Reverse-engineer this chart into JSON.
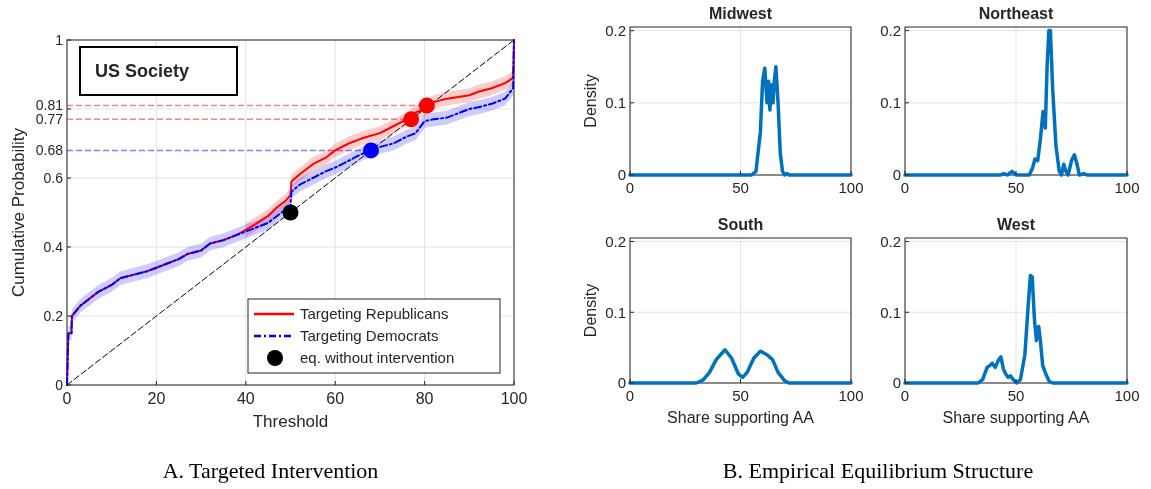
{
  "chart_data": [
    {
      "type": "line",
      "xlabel": "Threshold",
      "ylabel": "Cumulative Probability",
      "xlim": [
        0,
        100
      ],
      "xticks": [
        0,
        20,
        40,
        60,
        80,
        100
      ],
      "ylim": [
        0,
        1
      ],
      "yticks": [
        0,
        0.2,
        0.4,
        0.6,
        {
          "value": 0.8,
          "label": null
        },
        1
      ],
      "grid": true,
      "legend": "bottom right",
      "annotations": [
        "US Society",
        "A. Targeted Intervention"
      ],
      "x": [
        0,
        0.3,
        1,
        1.1,
        3,
        5,
        7,
        10,
        12,
        15,
        18,
        20,
        23,
        25,
        27,
        30,
        32,
        35,
        38,
        40,
        42,
        45,
        47,
        49,
        50,
        50.2,
        52,
        55,
        58,
        60,
        63,
        66,
        70,
        73,
        76,
        78,
        80,
        82,
        85,
        90,
        92,
        95,
        98,
        99.8,
        100
      ],
      "ref_lines": [
        {
          "axis": "y",
          "value": 0.81,
          "label": "0.81",
          "color": "#ff8080",
          "line_style": "dashed"
        },
        {
          "axis": "y",
          "value": 0.77,
          "label": "0.77",
          "color": "#ff8080",
          "line_style": "dashed"
        },
        {
          "axis": "y",
          "value": 0.68,
          "label": "0.68",
          "color": "#8080ff",
          "line_style": "dashed"
        }
      ],
      "series": [
        {
          "name": "Targeting Republicans",
          "color": "#ff0000",
          "line_style": "solid",
          "values": [
            0,
            0.15,
            0.15,
            0.2,
            0.23,
            0.25,
            0.27,
            0.29,
            0.31,
            0.32,
            0.33,
            0.34,
            0.355,
            0.365,
            0.38,
            0.39,
            0.41,
            0.42,
            0.435,
            0.45,
            0.465,
            0.49,
            0.515,
            0.535,
            0.55,
            0.59,
            0.61,
            0.64,
            0.66,
            0.68,
            0.7,
            0.715,
            0.73,
            0.75,
            0.77,
            0.79,
            0.8,
            0.82,
            0.83,
            0.84,
            0.85,
            0.86,
            0.875,
            0.89,
            1
          ],
          "lower": [
            null,
            null,
            null,
            null,
            null,
            null,
            null,
            null,
            null,
            null,
            null,
            null,
            null,
            null,
            null,
            null,
            null,
            null,
            null,
            0.43,
            0.445,
            0.47,
            0.495,
            0.515,
            0.53,
            0.57,
            0.59,
            0.62,
            0.64,
            0.66,
            0.68,
            0.695,
            0.71,
            0.73,
            0.75,
            0.77,
            0.78,
            0.8,
            0.81,
            0.82,
            0.83,
            0.84,
            0.855,
            0.87,
            1
          ],
          "upper": [
            null,
            null,
            null,
            null,
            null,
            null,
            null,
            null,
            null,
            null,
            null,
            null,
            null,
            null,
            null,
            null,
            null,
            null,
            null,
            0.47,
            0.485,
            0.51,
            0.535,
            0.555,
            0.57,
            0.61,
            0.63,
            0.66,
            0.68,
            0.7,
            0.72,
            0.735,
            0.75,
            0.77,
            0.79,
            0.81,
            0.82,
            0.84,
            0.85,
            0.86,
            0.87,
            0.88,
            0.895,
            0.91,
            1
          ]
        },
        {
          "name": "Targeting Democrats",
          "color": "#0000ff",
          "line_style": "dashed",
          "values": [
            0,
            0.15,
            0.15,
            0.2,
            0.23,
            0.25,
            0.27,
            0.29,
            0.31,
            0.32,
            0.33,
            0.34,
            0.355,
            0.365,
            0.38,
            0.39,
            0.41,
            0.42,
            0.435,
            0.445,
            0.455,
            0.47,
            0.49,
            0.51,
            0.52,
            0.56,
            0.58,
            0.6,
            0.62,
            0.63,
            0.65,
            0.67,
            0.69,
            0.7,
            0.72,
            0.73,
            0.765,
            0.77,
            0.775,
            0.8,
            0.805,
            0.815,
            0.83,
            0.86,
            1
          ],
          "lower": [
            0,
            0.13,
            0.13,
            0.18,
            0.21,
            0.23,
            0.25,
            0.27,
            0.29,
            0.3,
            0.31,
            0.32,
            0.335,
            0.345,
            0.36,
            0.37,
            0.39,
            0.4,
            0.415,
            0.425,
            0.435,
            0.45,
            0.47,
            0.49,
            0.5,
            0.54,
            0.56,
            0.58,
            0.6,
            0.61,
            0.63,
            0.65,
            0.67,
            0.68,
            0.7,
            0.71,
            0.745,
            0.75,
            0.755,
            0.78,
            0.785,
            0.795,
            0.81,
            0.84,
            1
          ],
          "upper": [
            0,
            0.17,
            0.17,
            0.22,
            0.25,
            0.27,
            0.29,
            0.31,
            0.33,
            0.34,
            0.35,
            0.36,
            0.375,
            0.385,
            0.4,
            0.41,
            0.43,
            0.44,
            0.455,
            0.465,
            0.475,
            0.49,
            0.51,
            0.53,
            0.54,
            0.58,
            0.6,
            0.62,
            0.64,
            0.65,
            0.67,
            0.69,
            0.71,
            0.72,
            0.74,
            0.75,
            0.785,
            0.79,
            0.795,
            0.82,
            0.825,
            0.835,
            0.85,
            0.88,
            1
          ]
        },
        {
          "type": "line",
          "color": "#000000",
          "line_style": "dashed",
          "x": [
            0,
            100
          ],
          "values": [
            0,
            1
          ]
        },
        {
          "type": "scatter",
          "marker": "circle",
          "x": [
            77,
            80.5,
            68
          ],
          "values": [
            0.77,
            0.81,
            0.68
          ],
          "colors": [
            "#ff0000",
            "#ff0000",
            "#0000ff"
          ]
        },
        {
          "type": "scatter",
          "marker": "circle",
          "name": "eq. without intervention",
          "color": "#000000",
          "x": [
            50
          ],
          "values": [
            0.5
          ]
        }
      ]
    },
    {
      "type": "line",
      "title": "Midwest",
      "ylabel": "Density",
      "xlim": [
        0,
        100
      ],
      "xticks": [
        0,
        50,
        100
      ],
      "ylim": [
        0,
        0.205
      ],
      "yticks": [
        0,
        0.1,
        0.2
      ],
      "grid": true,
      "annotations": [
        "B. Empirical Equilibrium Structure"
      ],
      "series": [
        {
          "color": "#0072bd",
          "x": [
            0,
            55,
            57,
            59,
            60,
            61,
            62,
            62.7,
            63.3,
            64,
            64.7,
            65.3,
            66,
            67,
            68,
            69,
            70,
            71,
            72,
            100
          ],
          "values": [
            0,
            0,
            0.005,
            0.06,
            0.13,
            0.148,
            0.1,
            0.13,
            0.09,
            0.125,
            0.1,
            0.13,
            0.15,
            0.1,
            0.03,
            0.005,
            0,
            0.002,
            0,
            0
          ]
        }
      ]
    },
    {
      "type": "line",
      "title": "Northeast",
      "xlim": [
        0,
        100
      ],
      "xticks": [
        0,
        50,
        100
      ],
      "ylim": [
        0,
        0.205
      ],
      "yticks": [
        0,
        0.1,
        0.2
      ],
      "grid": true,
      "series": [
        {
          "color": "#0072bd",
          "x": [
            0,
            43,
            44.5,
            46,
            48.3,
            50,
            56,
            57.5,
            58.5,
            59.8,
            61,
            62.2,
            63.2,
            64,
            64.8,
            65.5,
            66.5,
            68,
            69.5,
            70.5,
            71.5,
            72.5,
            73.5,
            75,
            76.3,
            77.5,
            78.5,
            80.5,
            82,
            100
          ],
          "values": [
            0,
            0,
            0.002,
            0,
            0.005,
            0,
            0,
            0.01,
            0.022,
            0.02,
            0.05,
            0.088,
            0.065,
            0.15,
            0.2,
            0.2,
            0.12,
            0.04,
            0.005,
            0,
            0.015,
            0.005,
            0,
            0.02,
            0.028,
            0.015,
            0,
            0.002,
            0,
            0
          ]
        }
      ]
    },
    {
      "type": "line",
      "title": "South",
      "xlabel": "Share supporting AA",
      "ylabel": "Density",
      "xlim": [
        0,
        100
      ],
      "xticks": [
        0,
        50,
        100
      ],
      "ylim": [
        0,
        0.205
      ],
      "yticks": [
        0,
        0.1,
        0.2
      ],
      "grid": true,
      "series": [
        {
          "color": "#0072bd",
          "x": [
            0,
            30,
            33,
            36,
            39,
            43,
            46,
            49,
            51,
            53,
            56,
            59,
            62,
            64.5,
            67,
            70,
            72,
            100
          ],
          "values": [
            0,
            0,
            0.004,
            0.015,
            0.033,
            0.047,
            0.035,
            0.013,
            0.008,
            0.015,
            0.035,
            0.045,
            0.04,
            0.033,
            0.015,
            0.003,
            0,
            0
          ]
        }
      ]
    },
    {
      "type": "line",
      "title": "West",
      "xlabel": "Share supporting AA",
      "xlim": [
        0,
        100
      ],
      "xticks": [
        0,
        50,
        100
      ],
      "ylim": [
        0,
        0.205
      ],
      "yticks": [
        0,
        0.1,
        0.2
      ],
      "grid": true,
      "series": [
        {
          "color": "#0072bd",
          "x": [
            0,
            33,
            35,
            37,
            38.3,
            39.3,
            40.7,
            42,
            43.2,
            44.3,
            45.3,
            46.5,
            47.5,
            48.7,
            50.3,
            52,
            54,
            55.5,
            56.5,
            57.3,
            58.3,
            59.2,
            60.2,
            61,
            62,
            63.5,
            65,
            66.5,
            100
          ],
          "values": [
            0,
            0,
            0.005,
            0.022,
            0.025,
            0.028,
            0.022,
            0.032,
            0.037,
            0.02,
            0.013,
            0.008,
            0.01,
            0.005,
            0,
            0.005,
            0.04,
            0.11,
            0.152,
            0.15,
            0.09,
            0.06,
            0.08,
            0.06,
            0.025,
            0.012,
            0.002,
            0,
            0
          ]
        }
      ]
    }
  ]
}
